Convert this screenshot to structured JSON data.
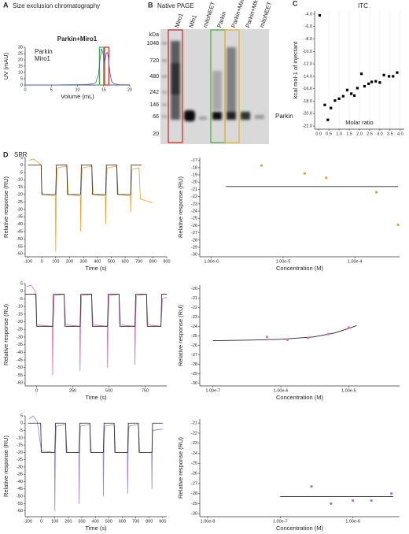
{
  "gel": {
    "panel": "B",
    "title": "Native PAGE",
    "unit": "kDa",
    "markers": [
      1048,
      720,
      480,
      242,
      146,
      66,
      20
    ],
    "lanes": [
      "Miro1",
      "Mfn1",
      "mitoNEET",
      "Parkin",
      "Parkin+Miro1",
      "Parkin+Mfn1",
      "mitoNEET"
    ],
    "band_label": "Parkin"
  },
  "chart_data": [
    {
      "type": "line",
      "panel": "A",
      "panel_title": "Size exclusion chromatography",
      "title": "Parkin+Miro1",
      "xlabel": "Volume (mL)",
      "ylabel": "UV (mAU)",
      "x": [
        0,
        2,
        4,
        6,
        8,
        10,
        11,
        12,
        13,
        13.5,
        14,
        14.3,
        14.6,
        14.9,
        15.1,
        15.3,
        15.5,
        15.7,
        15.9,
        16.2,
        16.5,
        17,
        18,
        20
      ],
      "series": [
        {
          "color": "#3a5fcd",
          "values": [
            0,
            0,
            0,
            0.1,
            0.2,
            0.3,
            0.4,
            0.5,
            1,
            2,
            8,
            20,
            29,
            25,
            18,
            20,
            25,
            26,
            22,
            10,
            3,
            1,
            0.3,
            0.2
          ]
        }
      ],
      "highlights": [
        {
          "name": "Parkin",
          "color": "#3cb43c",
          "range": [
            14.2,
            15.0
          ]
        },
        {
          "name": "Miro1",
          "color": "#e02020",
          "range": [
            15.2,
            16.0
          ]
        }
      ],
      "xlim": [
        0,
        20
      ],
      "xticks": [
        0,
        5,
        10,
        15,
        20
      ],
      "ylim": [
        0,
        30
      ],
      "yticks": [
        0,
        5,
        10,
        15,
        20,
        25,
        30
      ]
    },
    {
      "type": "scatter",
      "panel": "C",
      "panel_title": "ITC",
      "xlabel": "Molar ratio",
      "ylabel": "kcal mol-1 of injectant",
      "marker": "square",
      "color": "#000000",
      "grid": "x",
      "x": [
        0.05,
        0.3,
        0.45,
        0.6,
        0.8,
        1.0,
        1.2,
        1.4,
        1.6,
        1.75,
        1.9,
        2.1,
        2.25,
        2.45,
        2.6,
        2.8,
        3.0,
        3.2,
        3.45,
        3.65,
        3.85
      ],
      "values": [
        -4.2,
        -18.6,
        -21.0,
        -19.1,
        -17.9,
        -17.6,
        -17.2,
        -16.2,
        -16.8,
        -17.1,
        -15.9,
        -13.6,
        -15.6,
        -15.2,
        -14.9,
        -14.8,
        -15.0,
        -13.8,
        -14.0,
        -14.0,
        -13.4
      ],
      "xlim": [
        -0.2,
        4.2
      ],
      "xticks": [
        {
          "value": 0,
          "label": "0.0"
        },
        0.5,
        {
          "value": 1,
          "label": "1.0"
        },
        1.5,
        {
          "value": 2,
          "label": "2.0"
        },
        2.5,
        {
          "value": 3,
          "label": "3.0"
        },
        3.5,
        {
          "value": 4,
          "label": "4.0"
        }
      ],
      "ylim": [
        -22.5,
        -3.5
      ],
      "yticks": [
        {
          "value": -4,
          "label": "-4.0"
        },
        {
          "value": -6,
          "label": "-6.0"
        },
        {
          "value": -8,
          "label": "-8.0"
        },
        {
          "value": -10,
          "label": "-10.0"
        },
        {
          "value": -12,
          "label": "-12.0"
        },
        {
          "value": -14,
          "label": "-14.0"
        },
        {
          "value": -16,
          "label": "-16.0"
        },
        {
          "value": -18,
          "label": "-18.0"
        },
        {
          "value": -20,
          "label": "-20.0"
        },
        {
          "value": -22,
          "label": "-22.0"
        }
      ]
    },
    {
      "type": "line",
      "panel": "D",
      "panel_title": "SPR",
      "xlabel": "Time (s)",
      "ylabel": "Relative response (RU)",
      "series": [
        {
          "color": "#e8a030",
          "x": [
            -90,
            -60,
            -30,
            -5,
            0,
            10,
            98,
            100,
            104,
            110,
            180,
            190,
            278,
            280,
            284,
            290,
            360,
            370,
            458,
            460,
            464,
            470,
            540,
            550,
            638,
            640,
            644,
            650,
            700,
            710,
            780,
            800
          ],
          "values": [
            3,
            4,
            2,
            0,
            -18,
            -20,
            -21,
            -58,
            -20,
            -2,
            -1,
            -20,
            -21,
            -45,
            -18,
            -2,
            -1,
            -20,
            -21,
            -40,
            -18,
            -2,
            -1,
            -20,
            -21,
            -32,
            -15,
            -3,
            -2,
            -23,
            -25,
            -25
          ]
        },
        {
          "color": "#222222",
          "x": [
            -100,
            -5,
            0,
            100,
            105,
            180,
            185,
            280,
            285,
            360,
            365,
            460,
            465,
            540,
            545,
            640,
            645,
            720
          ],
          "values": [
            0,
            0,
            -20,
            -20,
            0,
            0,
            -20,
            -20,
            0,
            0,
            -20,
            -20,
            0,
            0,
            -20,
            -20,
            0,
            0
          ]
        }
      ],
      "xlim": [
        -120,
        900
      ],
      "xticks": [
        -100,
        0,
        100,
        200,
        300,
        400,
        500,
        600,
        700,
        800,
        900
      ],
      "ylim": [
        -62,
        5
      ],
      "yticks": [
        5,
        0,
        -5,
        -10,
        -15,
        -20,
        -25,
        -30,
        -35,
        -40,
        -45,
        -50,
        -55,
        -60
      ]
    },
    {
      "type": "scatter",
      "xlabel": "Concentration (M)",
      "ylabel": "Relative response (RU)",
      "xlog": true,
      "series": [
        {
          "mode": "line",
          "color": "#222222",
          "x": [
            1.6e-06,
            0.0004
          ],
          "values": [
            -20.6,
            -20.6
          ]
        },
        {
          "mode": "markers",
          "color": "#e8a030",
          "x": [
            5e-06,
            2e-05,
            4e-05,
            0.0002,
            0.0004
          ],
          "values": [
            -17.7,
            -18.8,
            -19.4,
            -21.4,
            -25.9
          ]
        }
      ],
      "xlim": [
        6.9e-07,
        0.00042
      ],
      "xticks": [
        {
          "value": 1e-06,
          "label": "1.00e-6"
        },
        {
          "value": 1e-05,
          "label": "1.00e-5"
        },
        {
          "value": 0.0001,
          "label": "1.00e-4"
        }
      ],
      "ylim": [
        -30.3,
        -16.6
      ],
      "yticks": [
        -17,
        -18,
        -19,
        -20,
        -21,
        -22,
        -23,
        -24,
        -25,
        -26,
        -27,
        -28,
        -29,
        -30
      ]
    },
    {
      "type": "line",
      "xlabel": "Time (s)",
      "ylabel": "Relative response (RU)",
      "series": [
        {
          "color": "#e070b0",
          "x": [
            -70,
            -40,
            -10,
            0,
            108,
            110,
            114,
            120,
            190,
            200,
            298,
            300,
            304,
            310,
            380,
            390,
            488,
            490,
            494,
            500,
            570,
            580,
            678,
            680,
            684,
            690,
            760,
            770,
            858,
            862,
            870,
            900
          ],
          "values": [
            3,
            4,
            0,
            -22,
            -23,
            -55,
            -22,
            -3,
            -2,
            -22,
            -23,
            -52,
            -21,
            -3,
            -2,
            -22,
            -23,
            -50,
            -21,
            -3,
            -2,
            -22,
            -23,
            -48,
            -21,
            -3,
            -2,
            -22,
            -23,
            -20,
            -5,
            -4
          ]
        },
        {
          "color": "#222222",
          "x": [
            -80,
            -5,
            0,
            110,
            115,
            190,
            195,
            300,
            305,
            380,
            385,
            490,
            495,
            570,
            575,
            680,
            685,
            760,
            765,
            860,
            865,
            900
          ],
          "values": [
            -2,
            -2,
            -23,
            -23,
            -2,
            -2,
            -23,
            -23,
            -2,
            -2,
            -23,
            -23,
            -2,
            -2,
            -23,
            -23,
            -2,
            -2,
            -23,
            -23,
            -2,
            -2
          ]
        }
      ],
      "xlim": [
        -80,
        900
      ],
      "xticks": [
        0,
        250,
        500,
        750
      ],
      "ylim": [
        -62,
        5
      ],
      "yticks": [
        5,
        0,
        -5,
        -10,
        -15,
        -20,
        -25,
        -30,
        -35,
        -40,
        -45,
        -50,
        -55,
        -60
      ]
    },
    {
      "type": "scatter",
      "xlabel": "Concentration (M)",
      "ylabel": "Relative response (RU)",
      "xlog": true,
      "series": [
        {
          "mode": "line",
          "color": "#222222",
          "x": [
            1e-07,
            3e-07,
            1e-06,
            3e-06,
            6e-06,
            1e-05,
            1.3e-05
          ],
          "values": [
            -25.5,
            -25.45,
            -25.35,
            -25.1,
            -24.7,
            -24.2,
            -23.9
          ]
        },
        {
          "mode": "markers",
          "color": "#e070b0",
          "x": [
            6.25e-07,
            1.25e-06,
            2.5e-06,
            5e-06,
            1e-05
          ],
          "values": [
            -25.1,
            -25.4,
            -25.2,
            -24.8,
            -24.1
          ]
        }
      ],
      "xlim": [
        6.4e-08,
        5.6e-05
      ],
      "xticks": [
        {
          "value": 1e-07,
          "label": "1.00e-7"
        },
        {
          "value": 1e-06,
          "label": "1.00e-6"
        },
        {
          "value": 1e-05,
          "label": "1.00e-5"
        }
      ],
      "ylim": [
        -30.3,
        -19.6
      ],
      "yticks": [
        -20,
        -21,
        -22,
        -23,
        -24,
        -25,
        -26,
        -27,
        -28,
        -29,
        -30
      ]
    },
    {
      "type": "line",
      "xlabel": "Time (s)",
      "ylabel": "Relative response (RU)",
      "series": [
        {
          "color": "#9a80d0",
          "x": [
            -90,
            -60,
            -30,
            0,
            98,
            100,
            104,
            110,
            180,
            190,
            278,
            280,
            284,
            290,
            360,
            370,
            458,
            460,
            464,
            470,
            540,
            550,
            638,
            640,
            644,
            650,
            720,
            730,
            818,
            820,
            824,
            900
          ],
          "values": [
            3,
            5,
            1,
            -19,
            -20,
            -60,
            -18,
            -2,
            -1,
            -20,
            -20,
            -55,
            -18,
            -2,
            -1,
            -20,
            -20,
            -50,
            -18,
            -2,
            -1,
            -20,
            -20,
            -48,
            -18,
            -2,
            -1,
            -20,
            -20,
            -45,
            -5,
            -4
          ]
        },
        {
          "color": "#222222",
          "x": [
            -100,
            -5,
            0,
            100,
            105,
            180,
            185,
            280,
            285,
            360,
            365,
            460,
            465,
            540,
            545,
            640,
            645,
            720,
            725,
            820,
            825,
            900
          ],
          "values": [
            0,
            0,
            -20,
            -20,
            0,
            0,
            -20,
            -20,
            0,
            0,
            -20,
            -20,
            0,
            0,
            -20,
            -20,
            0,
            0,
            -20,
            -20,
            0,
            0
          ]
        }
      ],
      "xlim": [
        -120,
        930
      ],
      "xticks": [
        -100,
        0,
        100,
        200,
        300,
        400,
        500,
        600,
        700,
        800,
        900
      ],
      "ylim": [
        -64,
        5
      ],
      "yticks": [
        5,
        0,
        -5,
        -10,
        -15,
        -20,
        -25,
        -30,
        -35,
        -40,
        -45,
        -50,
        -55,
        -60
      ]
    },
    {
      "type": "scatter",
      "xlabel": "Concentration (M)",
      "ylabel": "Relative response (RU)",
      "xlog": true,
      "series": [
        {
          "mode": "line",
          "color": "#222222",
          "x": [
            1e-07,
            3.6e-06
          ],
          "values": [
            -28.3,
            -28.3
          ]
        },
        {
          "mode": "markers",
          "color": "#b070c0",
          "x": [
            2.7e-07,
            5e-07,
            1e-06,
            1.8e-06,
            3.4e-06
          ],
          "values": [
            -27.3,
            -29.0,
            -28.7,
            -28.7,
            -28.0
          ]
        }
      ],
      "xlim": [
        7.8e-09,
        4.4e-06
      ],
      "xticks": [
        {
          "value": 1e-08,
          "label": "1.00e-8"
        },
        {
          "value": 1e-07,
          "label": "1.00e-7"
        },
        {
          "value": 1e-06,
          "label": "1.00e-6"
        }
      ],
      "ylim": [
        -30.3,
        -20.6
      ],
      "yticks": [
        -21,
        -22,
        -23,
        -24,
        -25,
        -26,
        -27,
        -28,
        -29,
        -30
      ]
    }
  ]
}
